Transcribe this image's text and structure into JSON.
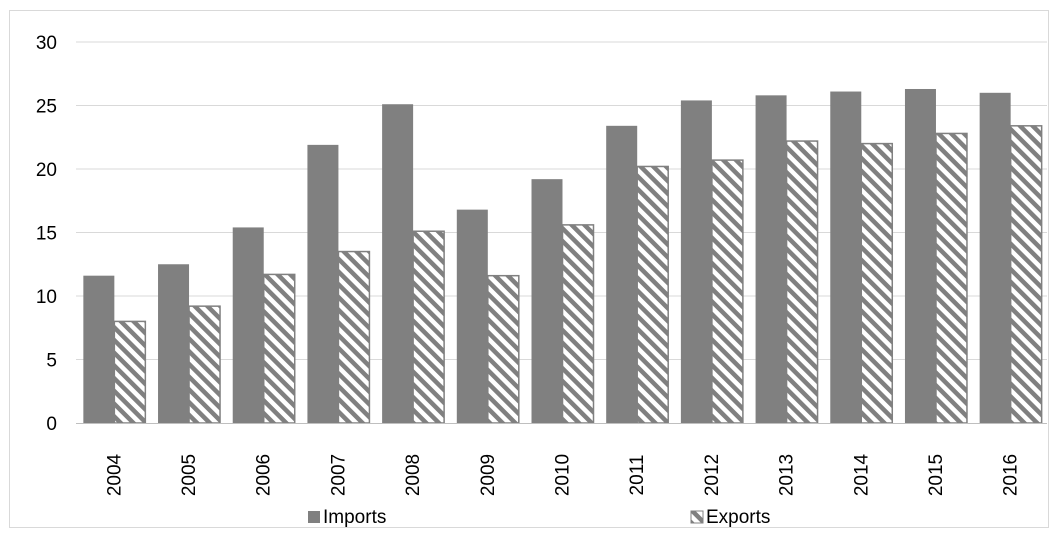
{
  "chart_data": {
    "type": "bar",
    "categories": [
      "2004",
      "2005",
      "2006",
      "2007",
      "2008",
      "2009",
      "2010",
      "2011",
      "2012",
      "2013",
      "2014",
      "2015",
      "2016"
    ],
    "series": [
      {
        "name": "Imports",
        "values": [
          11.6,
          12.5,
          15.4,
          21.9,
          25.1,
          16.8,
          19.2,
          23.4,
          25.4,
          25.8,
          26.1,
          26.3,
          26.0
        ],
        "color": "#808080",
        "pattern": "solid"
      },
      {
        "name": "Exports",
        "values": [
          8.0,
          9.2,
          11.7,
          13.5,
          15.1,
          11.6,
          15.6,
          20.2,
          20.7,
          22.2,
          22.0,
          22.8,
          23.4
        ],
        "color": "#808080",
        "pattern": "diagonal-hatch"
      }
    ],
    "title": "",
    "xlabel": "",
    "ylabel": "",
    "ylim": [
      0,
      30
    ],
    "yticks": [
      0,
      5,
      10,
      15,
      20,
      25,
      30
    ],
    "grid": true,
    "legend": "bottom"
  }
}
